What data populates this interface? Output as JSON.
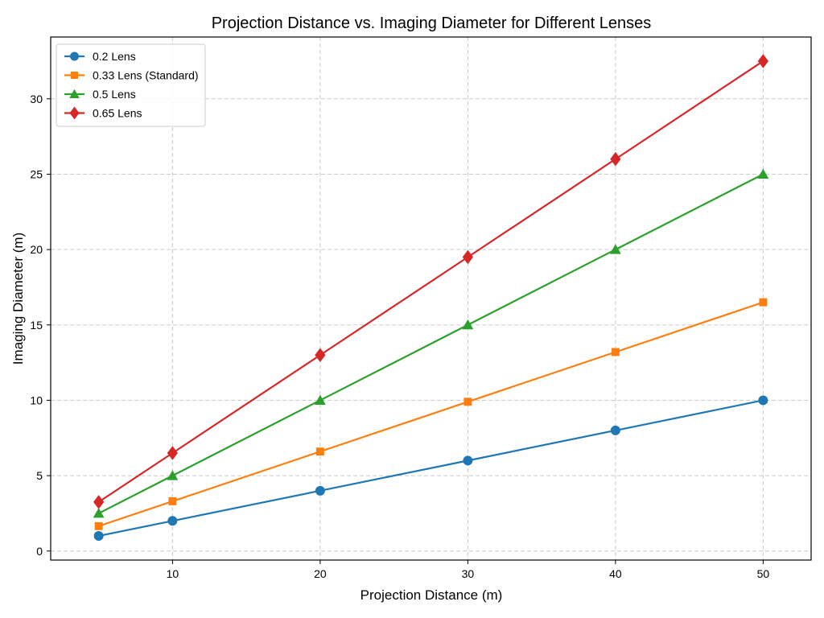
{
  "chart_data": {
    "type": "line",
    "title": "Projection Distance vs. Imaging Diameter for Different Lenses",
    "xlabel": "Projection Distance (m)",
    "ylabel": "Imaging Diameter (m)",
    "x": [
      5,
      10,
      20,
      30,
      40,
      50
    ],
    "xticks": [
      10,
      20,
      30,
      40,
      50
    ],
    "yticks": [
      0,
      5,
      10,
      15,
      20,
      25,
      30
    ],
    "xlim": [
      1.75,
      53.25
    ],
    "ylim": [
      -0.6,
      34.1
    ],
    "grid": true,
    "grid_style": "dashed",
    "legend_position": "top-left",
    "series": [
      {
        "name": "0.2 Lens",
        "values": [
          1.0,
          2.0,
          4.0,
          6.0,
          8.0,
          10.0
        ],
        "color": "#1f77b4",
        "marker": "circle"
      },
      {
        "name": "0.33 Lens (Standard)",
        "values": [
          1.65,
          3.3,
          6.6,
          9.9,
          13.2,
          16.5
        ],
        "color": "#ff7f0e",
        "marker": "square"
      },
      {
        "name": "0.5 Lens",
        "values": [
          2.5,
          5.0,
          10.0,
          15.0,
          20.0,
          25.0
        ],
        "color": "#2ca02c",
        "marker": "triangle"
      },
      {
        "name": "0.65 Lens",
        "values": [
          3.25,
          6.5,
          13.0,
          19.5,
          26.0,
          32.5
        ],
        "color": "#d62728",
        "marker": "diamond"
      }
    ]
  }
}
